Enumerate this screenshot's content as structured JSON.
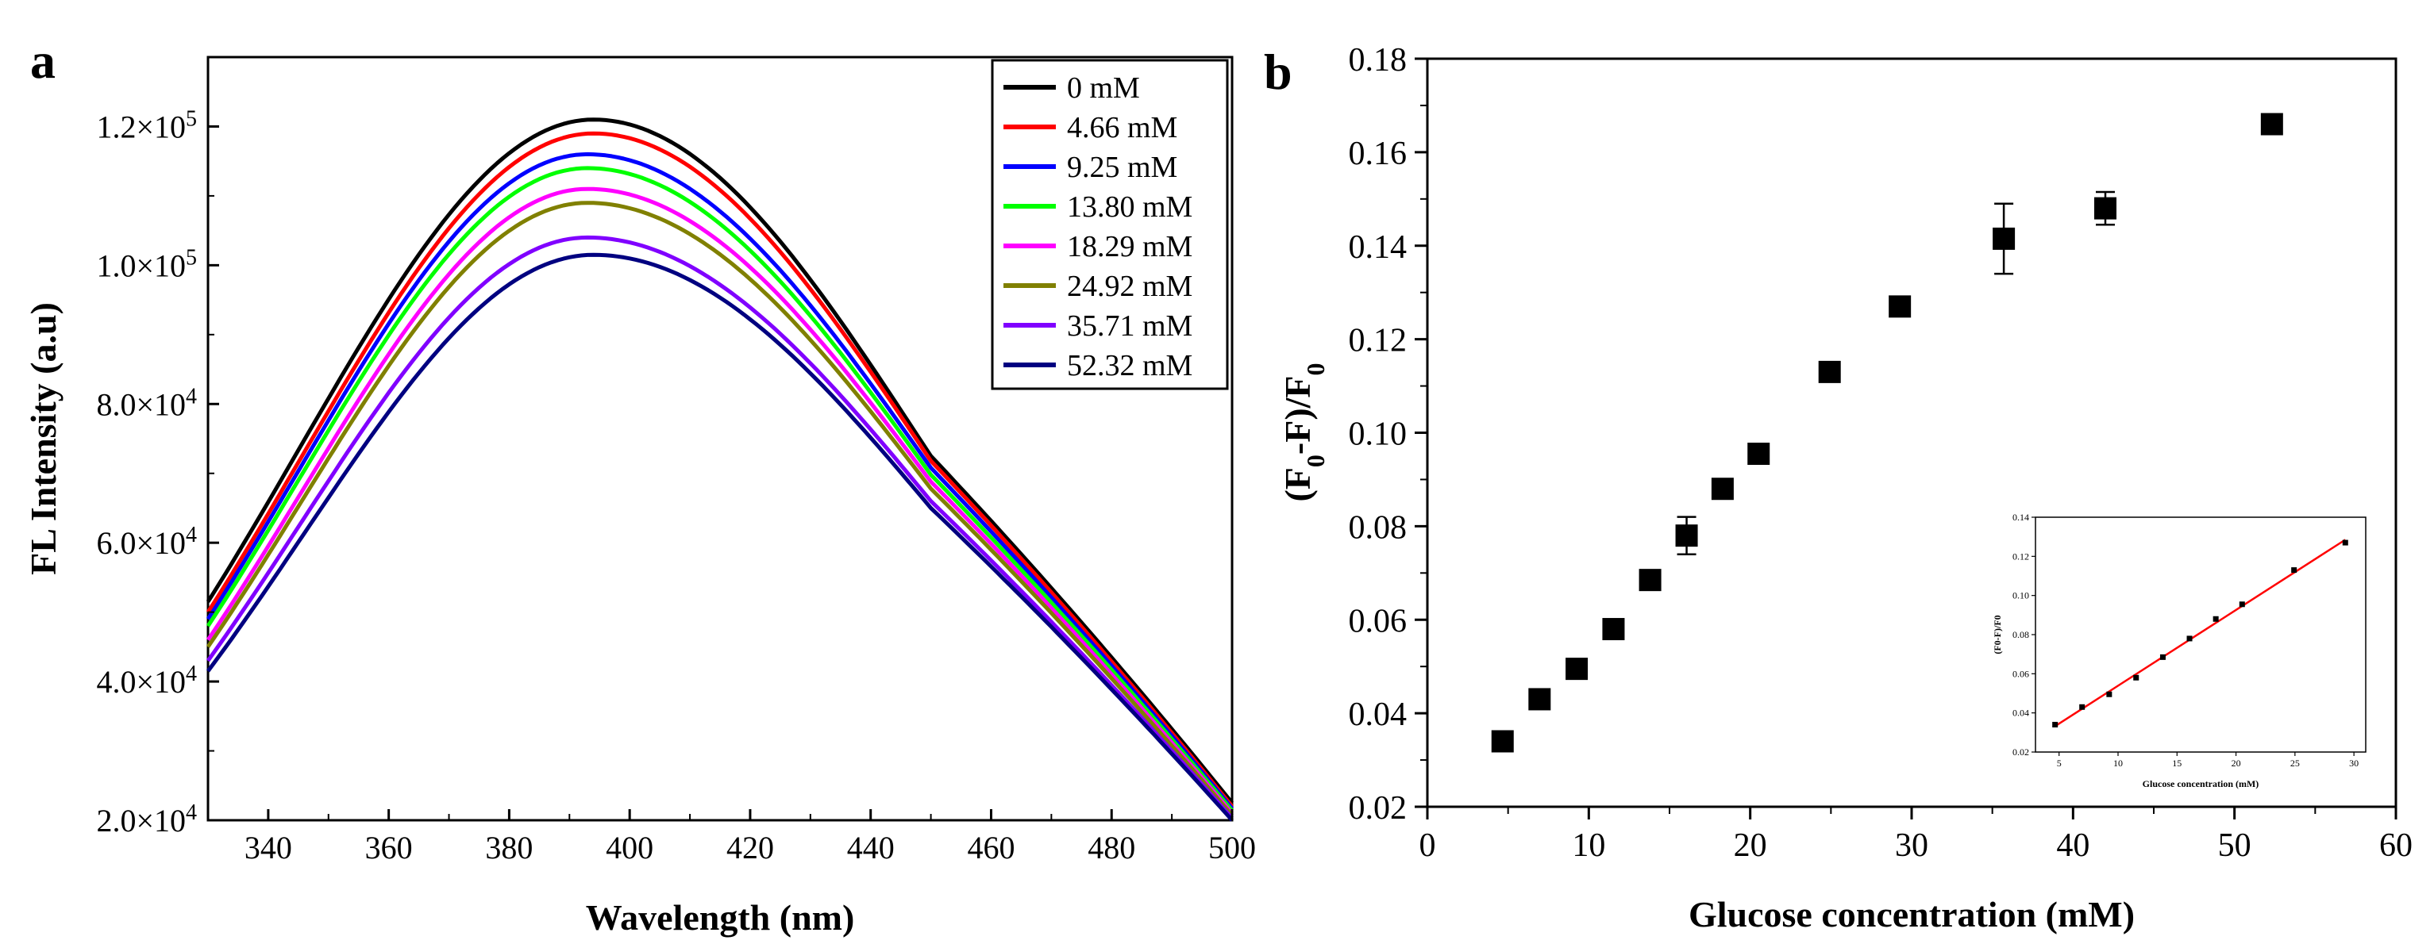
{
  "chart_data": [
    {
      "panel": "a",
      "type": "line",
      "xlabel": "Wavelength (nm)",
      "ylabel": "FL Intensity (a.u)",
      "xlim": [
        330,
        500
      ],
      "ylim": [
        20000,
        130000
      ],
      "xticks": [
        340,
        360,
        380,
        400,
        420,
        440,
        460,
        480,
        500
      ],
      "yticks": [
        {
          "base": "2.0×10",
          "exp": "4",
          "value": 20000
        },
        {
          "base": "4.0×10",
          "exp": "4",
          "value": 40000
        },
        {
          "base": "6.0×10",
          "exp": "4",
          "value": 60000
        },
        {
          "base": "8.0×10",
          "exp": "4",
          "value": 80000
        },
        {
          "base": "1.0×10",
          "exp": "5",
          "value": 100000
        },
        {
          "base": "1.2×10",
          "exp": "5",
          "value": 120000
        }
      ],
      "legend_position": "top-right",
      "series": [
        {
          "name": "0 mM",
          "color": "#000000",
          "start": 51500,
          "peak": 121000,
          "peakx": 394,
          "knee": 72500,
          "end": 22500
        },
        {
          "name": "4.66 mM",
          "color": "#ff0000",
          "start": 50000,
          "peak": 119000,
          "peakx": 394,
          "knee": 71800,
          "end": 22000
        },
        {
          "name": "9.25 mM",
          "color": "#0000ff",
          "start": 49000,
          "peak": 116000,
          "peakx": 393,
          "knee": 70800,
          "end": 21700
        },
        {
          "name": "13.80 mM",
          "color": "#00ff00",
          "start": 48000,
          "peak": 114000,
          "peakx": 393,
          "knee": 69800,
          "end": 21400
        },
        {
          "name": "18.29 mM",
          "color": "#ff00ff",
          "start": 46000,
          "peak": 111000,
          "peakx": 393,
          "knee": 68800,
          "end": 21000
        },
        {
          "name": "24.92 mM",
          "color": "#808000",
          "start": 45000,
          "peak": 109000,
          "peakx": 393,
          "knee": 67800,
          "end": 20700
        },
        {
          "name": "35.71 mM",
          "color": "#8000ff",
          "start": 43000,
          "peak": 104000,
          "peakx": 393,
          "knee": 66000,
          "end": 20300
        },
        {
          "name": "52.32 mM",
          "color": "#000080",
          "start": 41500,
          "peak": 101500,
          "peakx": 394,
          "knee": 65000,
          "end": 20000
        }
      ]
    },
    {
      "panel": "b",
      "type": "scatter",
      "xlabel": "Glucose concentration (mM)",
      "ylabel": "(F0-F)/F0",
      "ylabel_parts": {
        "open": "(F",
        "sub1": "0",
        "mid": "-F)/F",
        "sub2": "0"
      },
      "xlim": [
        0,
        60
      ],
      "ylim": [
        0.02,
        0.18
      ],
      "xticks": [
        "0",
        "10",
        "20",
        "30",
        "40",
        "50",
        "60"
      ],
      "yticks": [
        "0.02",
        "0.04",
        "0.06",
        "0.08",
        "0.10",
        "0.12",
        "0.14",
        "0.16",
        "0.18"
      ],
      "points": [
        {
          "x": 4.66,
          "y": 0.034,
          "err": 0
        },
        {
          "x": 6.95,
          "y": 0.043,
          "err": 0
        },
        {
          "x": 9.25,
          "y": 0.0495,
          "err": 0
        },
        {
          "x": 11.53,
          "y": 0.058,
          "err": 0
        },
        {
          "x": 13.8,
          "y": 0.0685,
          "err": 0
        },
        {
          "x": 16.06,
          "y": 0.078,
          "err": 0.004
        },
        {
          "x": 18.29,
          "y": 0.088,
          "err": 0
        },
        {
          "x": 20.52,
          "y": 0.0955,
          "err": 0
        },
        {
          "x": 24.92,
          "y": 0.113,
          "err": 0
        },
        {
          "x": 29.27,
          "y": 0.127,
          "err": 0
        },
        {
          "x": 35.71,
          "y": 0.1415,
          "err": 0.0075
        },
        {
          "x": 42.0,
          "y": 0.148,
          "err": 0.0035
        },
        {
          "x": 52.32,
          "y": 0.166,
          "err": 0
        }
      ],
      "inset": {
        "type": "scatter",
        "xlabel": "Glucose concentration (mM)",
        "ylabel": "(F0-F)/F0",
        "xlim": [
          3,
          31
        ],
        "ylim": [
          0.02,
          0.14
        ],
        "xticks": [
          "5",
          "10",
          "15",
          "20",
          "25",
          "30"
        ],
        "yticks": [
          "0.02",
          "0.04",
          "0.06",
          "0.08",
          "0.10",
          "0.12",
          "0.14"
        ],
        "points": [
          {
            "x": 4.66,
            "y": 0.034
          },
          {
            "x": 6.95,
            "y": 0.043
          },
          {
            "x": 9.25,
            "y": 0.0495
          },
          {
            "x": 11.53,
            "y": 0.058
          },
          {
            "x": 13.8,
            "y": 0.0685
          },
          {
            "x": 16.06,
            "y": 0.078
          },
          {
            "x": 18.29,
            "y": 0.088
          },
          {
            "x": 20.52,
            "y": 0.0955
          },
          {
            "x": 24.92,
            "y": 0.113
          },
          {
            "x": 29.27,
            "y": 0.127
          }
        ],
        "fit_line": {
          "x": [
            4.66,
            29.27
          ],
          "y": [
            0.0332,
            0.1285
          ],
          "color": "#ff0000"
        }
      }
    }
  ],
  "panel_labels": {
    "a": "a",
    "b": "b"
  },
  "colors": {
    "axis": "#000000",
    "marker": "#000000",
    "fit": "#ff0000"
  }
}
